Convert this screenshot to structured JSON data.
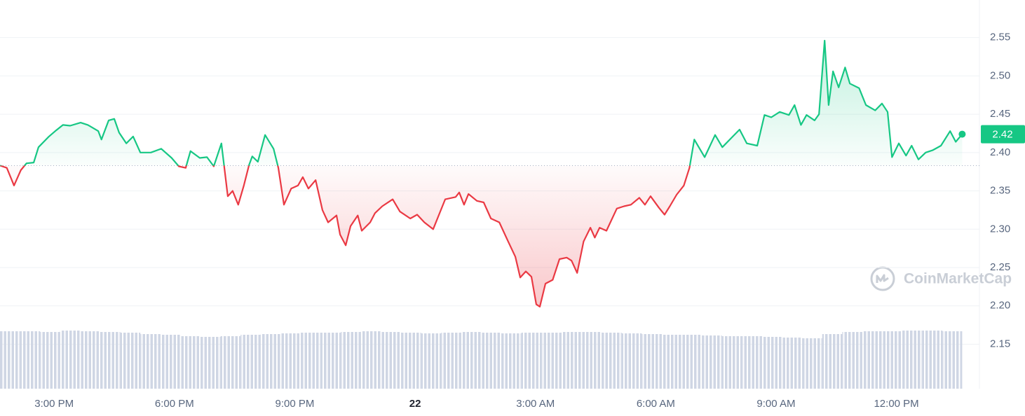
{
  "chart_data": {
    "type": "line",
    "color": "#16c784",
    "down_color": "#ea3943",
    "baseline": 2.383,
    "watermark": "CoinMarketCap",
    "last_value_label": "2.42",
    "x": [
      13.65,
      13.82,
      14.0,
      14.17,
      14.31,
      14.49,
      14.61,
      14.87,
      15.05,
      15.22,
      15.4,
      15.66,
      15.84,
      16.1,
      16.18,
      16.36,
      16.5,
      16.62,
      16.8,
      16.97,
      17.15,
      17.41,
      17.67,
      17.93,
      18.11,
      18.28,
      18.4,
      18.63,
      18.81,
      18.98,
      19.17,
      19.33,
      19.45,
      19.59,
      19.73,
      19.86,
      19.94,
      20.08,
      20.26,
      20.47,
      20.59,
      20.73,
      20.91,
      21.08,
      21.2,
      21.34,
      21.52,
      21.69,
      21.83,
      22.04,
      22.13,
      22.27,
      22.39,
      22.57,
      22.67,
      22.88,
      23.0,
      23.18,
      23.44,
      23.62,
      23.88,
      24.05,
      24.23,
      24.45,
      24.75,
      25.01,
      25.1,
      25.22,
      25.33,
      25.54,
      25.71,
      25.89,
      26.1,
      26.32,
      26.5,
      26.62,
      26.76,
      26.9,
      27.02,
      27.11,
      27.25,
      27.43,
      27.6,
      27.78,
      27.9,
      28.04,
      28.2,
      28.37,
      28.48,
      28.6,
      28.77,
      29.03,
      29.21,
      29.38,
      29.59,
      29.73,
      29.87,
      30.08,
      30.22,
      30.35,
      30.52,
      30.7,
      30.84,
      30.96,
      31.22,
      31.48,
      31.66,
      31.92,
      32.09,
      32.27,
      32.53,
      32.71,
      32.88,
      33.09,
      33.32,
      33.46,
      33.62,
      33.76,
      33.96,
      34.07,
      34.21,
      34.31,
      34.42,
      34.56,
      34.72,
      34.84,
      35.07,
      35.24,
      35.47,
      35.64,
      35.78,
      35.89,
      36.06,
      36.24,
      36.38,
      36.55,
      36.73,
      36.9,
      37.11,
      37.34,
      37.48,
      37.64
    ],
    "values": [
      2.383,
      2.38,
      2.357,
      2.377,
      2.386,
      2.387,
      2.407,
      2.421,
      2.429,
      2.436,
      2.435,
      2.439,
      2.436,
      2.428,
      2.417,
      2.442,
      2.444,
      2.426,
      2.412,
      2.421,
      2.4,
      2.4,
      2.405,
      2.393,
      2.382,
      2.38,
      2.402,
      2.393,
      2.394,
      2.382,
      2.412,
      2.343,
      2.35,
      2.332,
      2.357,
      2.384,
      2.395,
      2.388,
      2.423,
      2.405,
      2.38,
      2.332,
      2.353,
      2.357,
      2.368,
      2.353,
      2.364,
      2.325,
      2.309,
      2.318,
      2.293,
      2.279,
      2.304,
      2.318,
      2.298,
      2.309,
      2.321,
      2.33,
      2.339,
      2.323,
      2.314,
      2.319,
      2.309,
      2.3,
      2.339,
      2.342,
      2.348,
      2.332,
      2.346,
      2.337,
      2.335,
      2.314,
      2.309,
      2.284,
      2.264,
      2.237,
      2.245,
      2.238,
      2.202,
      2.199,
      2.229,
      2.234,
      2.261,
      2.263,
      2.259,
      2.243,
      2.284,
      2.302,
      2.289,
      2.302,
      2.298,
      2.327,
      2.33,
      2.332,
      2.341,
      2.332,
      2.343,
      2.328,
      2.319,
      2.33,
      2.345,
      2.357,
      2.38,
      2.417,
      2.394,
      2.423,
      2.407,
      2.421,
      2.43,
      2.412,
      2.409,
      2.449,
      2.446,
      2.453,
      2.449,
      2.462,
      2.436,
      2.449,
      2.442,
      2.45,
      2.546,
      2.462,
      2.506,
      2.485,
      2.511,
      2.49,
      2.484,
      2.462,
      2.455,
      2.464,
      2.453,
      2.394,
      2.412,
      2.396,
      2.409,
      2.391,
      2.4,
      2.403,
      2.409,
      2.428,
      2.414,
      2.424
    ],
    "volume": {
      "color": "#cfd6e4",
      "x": [
        13.65,
        14.15,
        14.65,
        15.15,
        15.65,
        16.15,
        16.65,
        17.15,
        17.65,
        18.15,
        18.65,
        19.15,
        19.65,
        20.15,
        20.65,
        21.15,
        21.65,
        22.15,
        22.65,
        23.15,
        23.65,
        24.15,
        24.65,
        25.15,
        25.65,
        26.15,
        26.65,
        27.15,
        27.65,
        28.15,
        28.65,
        29.15,
        29.65,
        30.15,
        30.65,
        31.15,
        31.65,
        32.15,
        32.65,
        33.15,
        33.65,
        34.15,
        34.65,
        35.15,
        35.65,
        36.15,
        36.65,
        37.15
      ],
      "values": [
        82,
        82,
        81,
        83,
        82,
        81,
        80,
        78,
        77,
        75,
        74,
        75,
        77,
        78,
        79,
        80,
        80,
        81,
        82,
        81,
        80,
        79,
        80,
        81,
        80,
        79,
        80,
        80,
        81,
        81,
        80,
        79,
        78,
        77,
        77,
        76,
        75,
        75,
        74,
        73,
        72,
        78,
        81,
        82,
        82,
        83,
        83,
        82
      ]
    },
    "xlim": [
      13.65,
      38.07
    ],
    "xticks": [
      {
        "value": 15,
        "label": "3:00 PM"
      },
      {
        "value": 18,
        "label": "6:00 PM"
      },
      {
        "value": 21,
        "label": "9:00 PM"
      },
      {
        "value": 24,
        "label": "22"
      },
      {
        "value": 27,
        "label": "3:00 AM"
      },
      {
        "value": 30,
        "label": "6:00 AM"
      },
      {
        "value": 33,
        "label": "9:00 AM"
      },
      {
        "value": 36,
        "label": "12:00 PM"
      }
    ],
    "ylim": [
      2.092,
      2.599
    ],
    "yticks": [
      2.15,
      {
        "value": 2.2,
        "label": "2.20"
      },
      2.25,
      {
        "value": 2.3,
        "label": "2.30"
      },
      2.35,
      {
        "value": 2.4,
        "label": "2.40"
      },
      2.45,
      {
        "value": 2.5,
        "label": "2.50"
      },
      2.55
    ],
    "grid": true
  }
}
